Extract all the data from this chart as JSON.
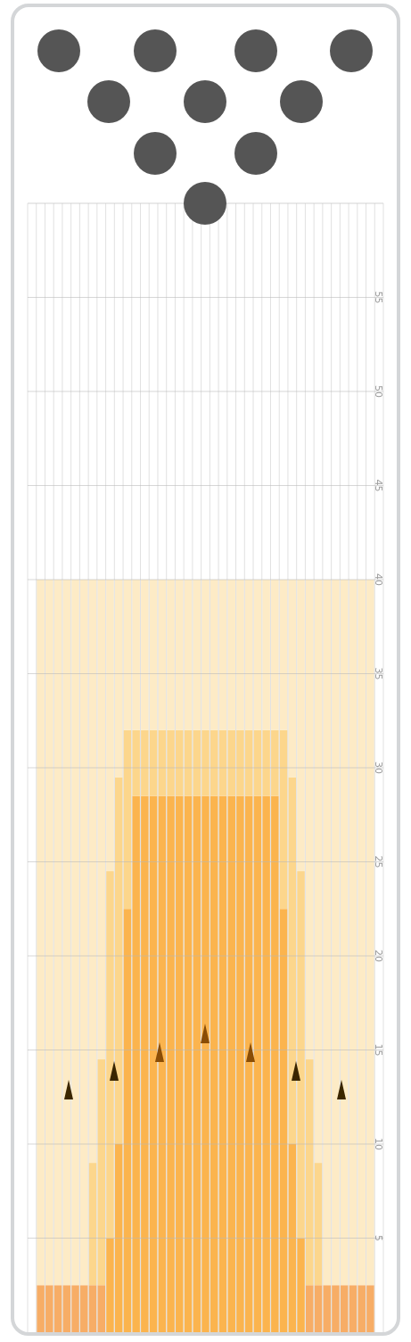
{
  "chart_data": {
    "type": "bar",
    "stacked": true,
    "grid": true,
    "tick_labels": "y",
    "categories": [
      null,
      null,
      null,
      null,
      null,
      null,
      null,
      null,
      null,
      null,
      null,
      null,
      null,
      null,
      null,
      null,
      null,
      null,
      null,
      null,
      null,
      null,
      null,
      null,
      null,
      null,
      null,
      null,
      null,
      null,
      null,
      null,
      null,
      null,
      null,
      null,
      null,
      null,
      null,
      null,
      null
    ],
    "ylim": [
      0,
      60
    ],
    "yticks": [
      5,
      10,
      15,
      20,
      25,
      30,
      35,
      40,
      45,
      50,
      55
    ],
    "series": [
      {
        "color": "#f7ad66",
        "values": [
          null,
          2.5,
          2.5,
          2.5,
          2.5,
          2.5,
          2.5,
          2.5,
          2.5,
          null,
          null,
          null,
          null,
          null,
          null,
          null,
          null,
          null,
          null,
          null,
          null,
          null,
          null,
          null,
          null,
          null,
          null,
          null,
          null,
          null,
          null,
          null,
          2.5,
          2.5,
          2.5,
          2.5,
          2.5,
          2.5,
          2.5,
          2.5,
          null
        ]
      },
      {
        "color": "#fbb44e",
        "values": [
          null,
          null,
          null,
          null,
          null,
          null,
          null,
          null,
          null,
          5,
          10,
          22.5,
          28.5,
          28.5,
          28.5,
          28.5,
          28.5,
          28.5,
          28.5,
          28.5,
          28.5,
          28.5,
          28.5,
          28.5,
          28.5,
          28.5,
          28.5,
          28.5,
          28.5,
          22.5,
          10,
          5,
          null,
          null,
          null,
          null,
          null,
          null,
          null,
          null,
          null
        ]
      },
      {
        "color": "#fcd68c",
        "values": [
          null,
          null,
          null,
          null,
          null,
          null,
          null,
          6.5,
          12,
          19.5,
          19.5,
          9.5,
          3.5,
          3.5,
          3.5,
          3.5,
          3.5,
          3.5,
          3.5,
          3.5,
          3.5,
          3.5,
          3.5,
          3.5,
          3.5,
          3.5,
          3.5,
          3.5,
          3.5,
          9.5,
          19.5,
          19.5,
          12,
          6.5,
          null,
          null,
          null,
          null,
          null,
          null,
          null
        ]
      },
      {
        "color": "#fdebc6",
        "values": [
          null,
          37.5,
          37.5,
          37.5,
          37.5,
          37.5,
          37.5,
          31,
          25.5,
          15.5,
          10.5,
          8,
          8,
          8,
          8,
          8,
          8,
          8,
          8,
          8,
          8,
          8,
          8,
          8,
          8,
          8,
          8,
          8,
          8,
          8,
          10.5,
          15.5,
          25.5,
          31,
          37.5,
          37.5,
          37.5,
          37.5,
          37.5,
          37.5,
          null
        ]
      }
    ]
  }
}
